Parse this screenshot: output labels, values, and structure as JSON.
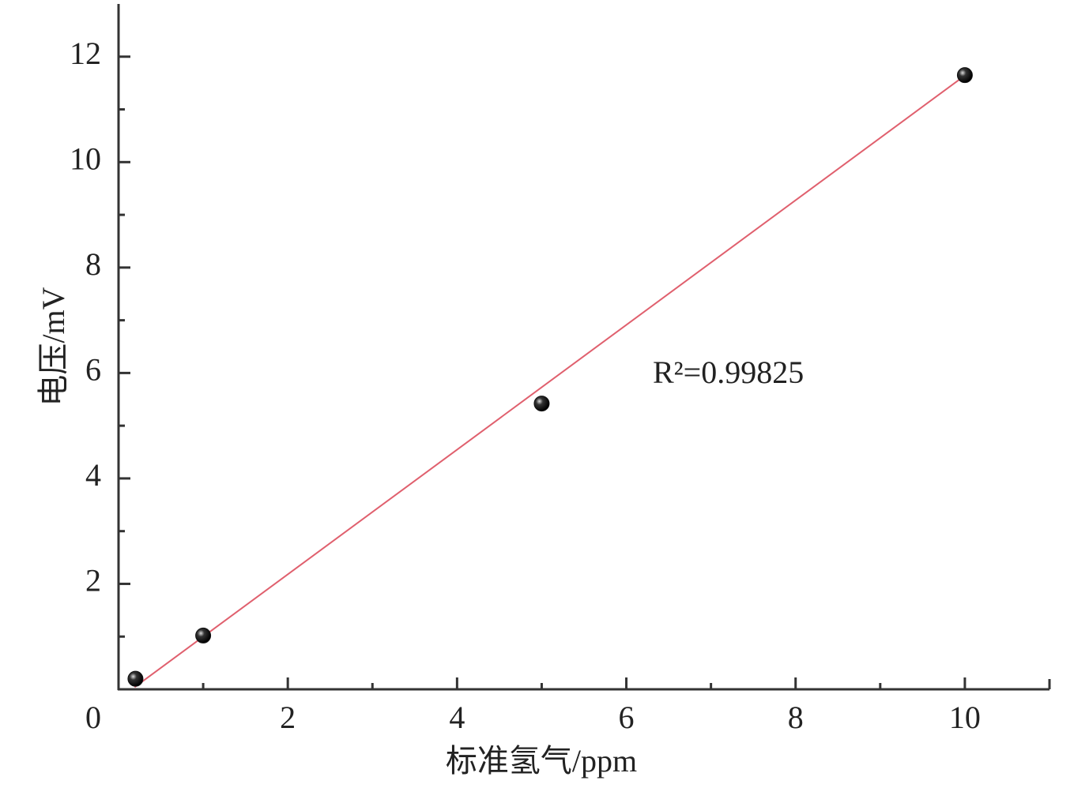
{
  "chart_data": {
    "type": "scatter",
    "x_label": "标准氢气/ppm",
    "y_label": "电压/mV",
    "annotation": "R²=0.99825",
    "xlim": [
      0,
      11
    ],
    "ylim": [
      0,
      13
    ],
    "xticks": [
      0,
      2,
      4,
      6,
      8,
      10
    ],
    "yticks": [
      2,
      4,
      6,
      8,
      10,
      12
    ],
    "series": [
      {
        "x": [
          0.2,
          1,
          5,
          10
        ],
        "values": [
          0.2,
          1.02,
          5.42,
          11.65
        ],
        "color": "#111111"
      }
    ],
    "fit": {
      "x": [
        0.19,
        9.93
      ],
      "values": [
        0.04,
        11.56
      ],
      "color": "#e0606e"
    }
  }
}
